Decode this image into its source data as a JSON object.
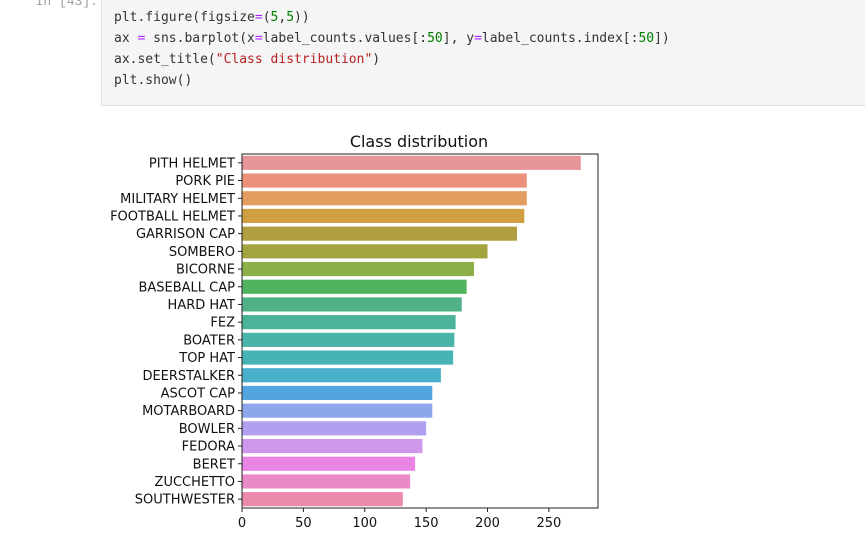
{
  "cell": {
    "prompt": "In [43]:",
    "code_lines": [
      [
        {
          "t": "plt.figure(figsize",
          "c": ""
        },
        {
          "t": "=",
          "c": "op"
        },
        {
          "t": "(",
          "c": ""
        },
        {
          "t": "5",
          "c": "num"
        },
        {
          "t": ",",
          "c": ""
        },
        {
          "t": "5",
          "c": "num"
        },
        {
          "t": "))",
          "c": ""
        }
      ],
      [
        {
          "t": "ax ",
          "c": ""
        },
        {
          "t": "=",
          "c": "op"
        },
        {
          "t": " sns.barplot(x",
          "c": ""
        },
        {
          "t": "=",
          "c": "op"
        },
        {
          "t": "label_counts.values[:",
          "c": ""
        },
        {
          "t": "50",
          "c": "num"
        },
        {
          "t": "], y",
          "c": ""
        },
        {
          "t": "=",
          "c": "op"
        },
        {
          "t": "label_counts.index[:",
          "c": ""
        },
        {
          "t": "50",
          "c": "num"
        },
        {
          "t": "])",
          "c": ""
        }
      ],
      [
        {
          "t": "ax.set_title(",
          "c": ""
        },
        {
          "t": "\"Class distribution\"",
          "c": "str"
        },
        {
          "t": ")",
          "c": ""
        }
      ],
      [
        {
          "t": "plt.show()",
          "c": ""
        }
      ]
    ]
  },
  "chart_data": {
    "type": "bar",
    "orientation": "horizontal",
    "title": "Class distribution",
    "xlabel": "",
    "ylabel": "",
    "xlim": [
      0,
      290
    ],
    "xticks": [
      0,
      50,
      100,
      150,
      200,
      250
    ],
    "grid": false,
    "categories": [
      "PITH HELMET",
      "PORK PIE",
      "MILITARY HELMET",
      "FOOTBALL HELMET",
      "GARRISON CAP",
      "SOMBERO",
      "BICORNE",
      "BASEBALL CAP",
      "HARD HAT",
      "FEZ",
      "BOATER",
      "TOP HAT",
      "DEERSTALKER",
      "ASCOT CAP",
      "MOTARBOARD",
      "BOWLER",
      "FEDORA",
      "BERET",
      "ZUCCHETTO",
      "SOUTHWESTER"
    ],
    "values": [
      276,
      232,
      232,
      230,
      224,
      200,
      189,
      183,
      179,
      174,
      173,
      172,
      162,
      155,
      155,
      150,
      147,
      141,
      137,
      131
    ],
    "colors": [
      "#e8959a",
      "#ea907b",
      "#e39e5f",
      "#cf9f42",
      "#b09f40",
      "#a3a43f",
      "#8daf48",
      "#51b35f",
      "#4fb185",
      "#4ab398",
      "#4ab4ab",
      "#48b3b7",
      "#4aafca",
      "#53a5e0",
      "#8ea7ec",
      "#b1a0ef",
      "#cf97eb",
      "#ea85e6",
      "#eb8ac8",
      "#ec8aae"
    ]
  }
}
